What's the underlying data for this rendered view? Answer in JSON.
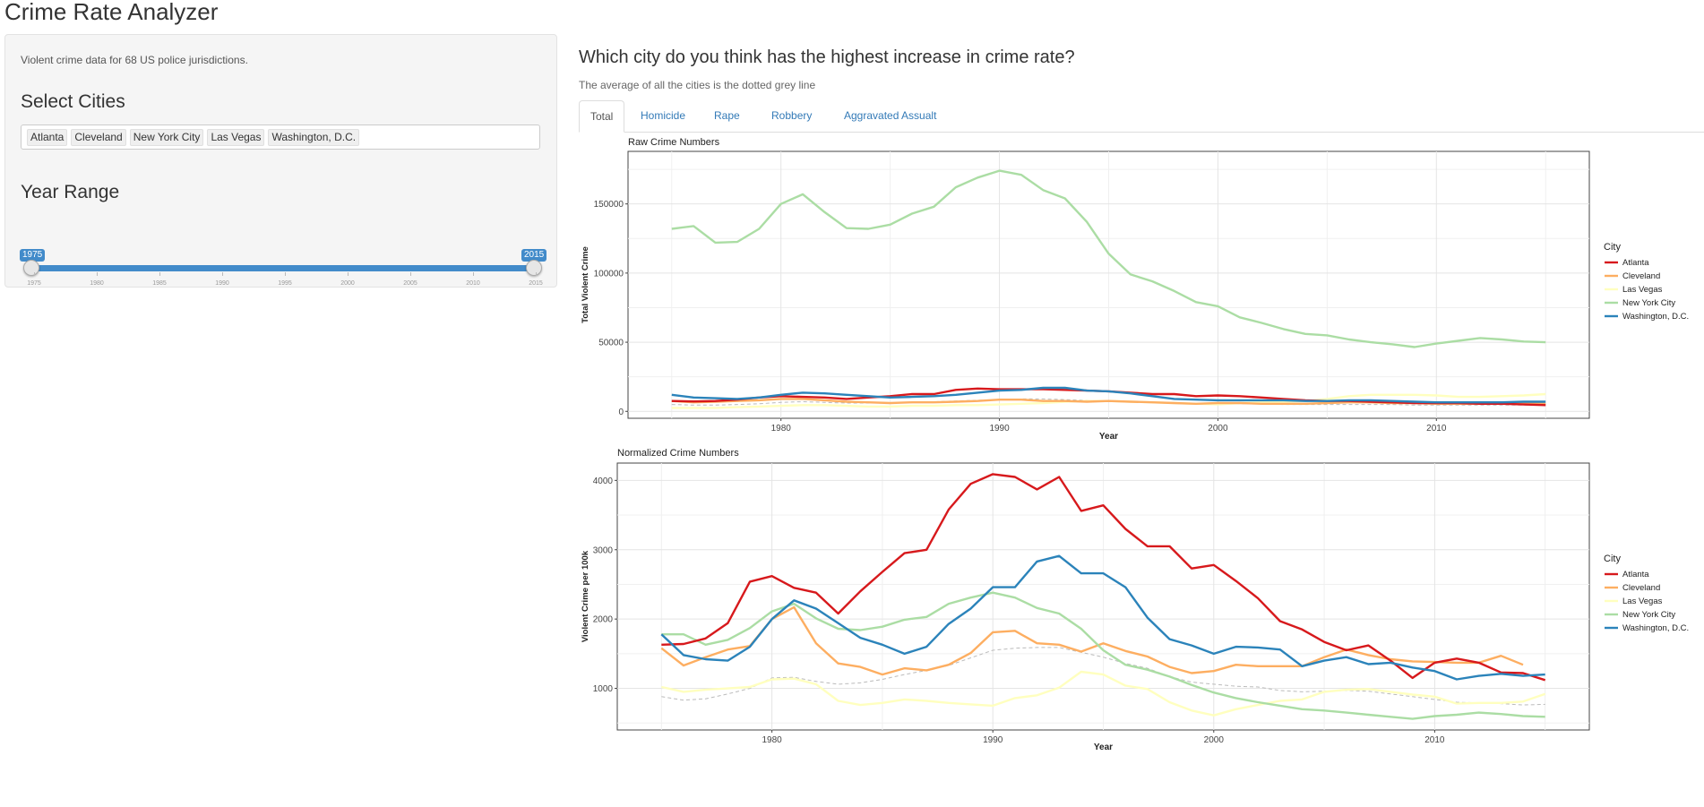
{
  "app": {
    "title": "Crime Rate Analyzer"
  },
  "sidebar": {
    "description": "Violent crime data for 68 US police jurisdictions.",
    "cities_heading": "Select Cities",
    "selected_cities": [
      "Atlanta",
      "Cleveland",
      "New York City",
      "Las Vegas",
      "Washington, D.C."
    ],
    "years_heading": "Year Range",
    "year_range": {
      "min": 1975,
      "max": 2015,
      "from": 1975,
      "to": 2015
    },
    "tick_labels": [
      "1975",
      "1980",
      "1985",
      "1990",
      "1995",
      "2000",
      "2005",
      "2010",
      "2015"
    ]
  },
  "main": {
    "question": "Which city do you think has the highest increase in crime rate?",
    "subtitle": "The average of all the cities is the dotted grey line",
    "tabs": [
      {
        "label": "Total",
        "active": true
      },
      {
        "label": "Homicide",
        "active": false
      },
      {
        "label": "Rape",
        "active": false
      },
      {
        "label": "Robbery",
        "active": false
      },
      {
        "label": "Aggravated Assualt",
        "active": false
      }
    ]
  },
  "colors": {
    "Atlanta": "#d7191c",
    "Cleveland": "#fdae61",
    "Las Vegas": "#ffffbf",
    "New York City": "#abdda4",
    "Washington, D.C.": "#2b83ba",
    "average": "#bbbbbb",
    "slider_accent": "#428bca",
    "link": "#337ab7"
  },
  "chart_data": [
    {
      "type": "line",
      "title": "Raw Crime Numbers",
      "xlabel": "Year",
      "ylabel": "Total Violent Crime",
      "xlim": [
        1973,
        2017
      ],
      "ylim": [
        -5000,
        188000
      ],
      "xticks": [
        1980,
        1990,
        2000,
        2010
      ],
      "yticks": [
        0,
        50000,
        100000,
        150000
      ],
      "ytick_labels": [
        "0",
        "50000",
        "100000",
        "150000"
      ],
      "legend_title": "City",
      "legend_position": "right",
      "x": [
        1975,
        1976,
        1977,
        1978,
        1979,
        1980,
        1981,
        1982,
        1983,
        1984,
        1985,
        1986,
        1987,
        1988,
        1989,
        1990,
        1991,
        1992,
        1993,
        1994,
        1995,
        1996,
        1997,
        1998,
        1999,
        2000,
        2001,
        2002,
        2003,
        2004,
        2005,
        2006,
        2007,
        2008,
        2009,
        2010,
        2011,
        2012,
        2013,
        2014,
        2015
      ],
      "series": [
        {
          "name": "Atlanta",
          "values": [
            7500,
            7200,
            7500,
            8500,
            10000,
            11000,
            10500,
            10000,
            9000,
            10000,
            11000,
            12500,
            12500,
            15500,
            16500,
            16000,
            16000,
            16000,
            15500,
            15000,
            14500,
            13500,
            12500,
            12500,
            11000,
            11500,
            11000,
            10000,
            9000,
            8000,
            7500,
            7500,
            7000,
            6500,
            6000,
            6000,
            6000,
            5500,
            5500,
            5000,
            4500
          ]
        },
        {
          "name": "Cleveland",
          "values": [
            7500,
            6500,
            7000,
            7500,
            8000,
            9000,
            9000,
            8000,
            7000,
            6500,
            6000,
            6500,
            6500,
            7000,
            7500,
            8500,
            8500,
            7500,
            7500,
            7000,
            7500,
            7000,
            6500,
            6000,
            5500,
            6000,
            6000,
            5500,
            5500,
            5500,
            6000,
            6500,
            6500,
            6000,
            6000,
            5500,
            5500,
            5500,
            5500,
            6000,
            5500
          ]
        },
        {
          "name": "Las Vegas",
          "values": [
            2500,
            2500,
            2500,
            3000,
            3500,
            4000,
            4500,
            4500,
            4000,
            3500,
            3500,
            4000,
            4000,
            4500,
            4500,
            5000,
            5500,
            6000,
            7000,
            7500,
            7500,
            7000,
            6500,
            6000,
            5500,
            5000,
            6000,
            6500,
            7000,
            7500,
            9000,
            11000,
            12000,
            12000,
            12000,
            11500,
            10500,
            10500,
            11000,
            11500,
            12500
          ]
        },
        {
          "name": "New York City",
          "values": [
            132000,
            134000,
            122000,
            122500,
            132000,
            150000,
            157000,
            144000,
            132500,
            132000,
            135000,
            143000,
            148000,
            162000,
            169000,
            174000,
            171000,
            160000,
            154000,
            137000,
            114000,
            99000,
            94000,
            87000,
            79000,
            76000,
            68000,
            64000,
            59500,
            56000,
            55000,
            52000,
            50000,
            48500,
            46500,
            49000,
            51000,
            53000,
            52000,
            50500,
            50000
          ]
        },
        {
          "name": "Washington, D.C.",
          "values": [
            12000,
            10000,
            9500,
            9000,
            10000,
            12000,
            13500,
            13000,
            12000,
            11000,
            10000,
            10500,
            11000,
            12000,
            13500,
            15000,
            15500,
            17000,
            17000,
            15000,
            14500,
            13000,
            11000,
            9000,
            8500,
            8000,
            8000,
            8000,
            8000,
            7500,
            7500,
            8000,
            8000,
            7500,
            7000,
            6500,
            6500,
            6500,
            6500,
            7000,
            7000
          ]
        },
        {
          "name": "Average",
          "values": [
            5000,
            4500,
            4500,
            5000,
            5500,
            6500,
            7000,
            6500,
            6000,
            6000,
            6000,
            6500,
            7000,
            7500,
            8000,
            8500,
            9000,
            9000,
            8500,
            8000,
            7500,
            7000,
            6500,
            6000,
            5500,
            5500,
            5500,
            5500,
            5000,
            5000,
            5000,
            5000,
            5000,
            5000,
            4500,
            4500,
            4500,
            4500,
            4500,
            4500,
            4500
          ]
        }
      ]
    },
    {
      "type": "line",
      "title": "Normalized Crime Numbers",
      "xlabel": "Year",
      "ylabel": "Violent Crime per 100k",
      "xlim": [
        1973,
        2017
      ],
      "ylim": [
        400,
        4250
      ],
      "xticks": [
        1980,
        1990,
        2000,
        2010
      ],
      "yticks": [
        1000,
        2000,
        3000,
        4000
      ],
      "ytick_labels": [
        "1000",
        "2000",
        "3000",
        "4000"
      ],
      "legend_title": "City",
      "legend_position": "right",
      "x": [
        1975,
        1976,
        1977,
        1978,
        1979,
        1980,
        1981,
        1982,
        1983,
        1984,
        1985,
        1986,
        1987,
        1988,
        1989,
        1990,
        1991,
        1992,
        1993,
        1994,
        1995,
        1996,
        1997,
        1998,
        1999,
        2000,
        2001,
        2002,
        2003,
        2004,
        2005,
        2006,
        2007,
        2008,
        2009,
        2010,
        2011,
        2012,
        2013,
        2014,
        2015
      ],
      "series": [
        {
          "name": "Atlanta",
          "values": [
            1630,
            1640,
            1720,
            1940,
            2540,
            2620,
            2450,
            2380,
            2080,
            2400,
            2680,
            2950,
            3000,
            3580,
            3950,
            4090,
            4050,
            3870,
            4050,
            3560,
            3640,
            3300,
            3050,
            3050,
            2730,
            2780,
            2550,
            2300,
            1970,
            1850,
            1670,
            1550,
            1620,
            1400,
            1150,
            1370,
            1430,
            1370,
            1230,
            1220,
            1120
          ]
        },
        {
          "name": "Cleveland",
          "values": [
            1580,
            1330,
            1450,
            1560,
            1610,
            2000,
            2170,
            1650,
            1360,
            1310,
            1200,
            1290,
            1260,
            1340,
            1510,
            1810,
            1830,
            1650,
            1630,
            1530,
            1650,
            1540,
            1460,
            1310,
            1220,
            1250,
            1340,
            1320,
            1320,
            1320,
            1450,
            1560,
            1480,
            1420,
            1390,
            1380,
            1370,
            1370,
            1470,
            1340,
            null
          ]
        },
        {
          "name": "Las Vegas",
          "values": [
            1020,
            950,
            980,
            1000,
            1020,
            1130,
            1140,
            1060,
            820,
            760,
            790,
            840,
            820,
            790,
            770,
            750,
            860,
            900,
            1010,
            1240,
            1200,
            1040,
            990,
            800,
            680,
            610,
            700,
            760,
            820,
            840,
            950,
            980,
            990,
            950,
            910,
            880,
            780,
            790,
            790,
            810,
            920
          ]
        },
        {
          "name": "New York City",
          "values": [
            1780,
            1780,
            1630,
            1700,
            1870,
            2110,
            2220,
            2010,
            1860,
            1840,
            1890,
            1990,
            2030,
            2220,
            2310,
            2380,
            2310,
            2160,
            2080,
            1860,
            1550,
            1340,
            1270,
            1170,
            1050,
            940,
            860,
            800,
            750,
            700,
            680,
            650,
            620,
            590,
            560,
            600,
            620,
            650,
            630,
            600,
            590
          ]
        },
        {
          "name": "Washington, D.C.",
          "values": [
            1780,
            1480,
            1420,
            1400,
            1600,
            2000,
            2270,
            2150,
            1940,
            1730,
            1630,
            1500,
            1600,
            1930,
            2150,
            2460,
            2460,
            2830,
            2910,
            2660,
            2660,
            2460,
            2020,
            1710,
            1620,
            1500,
            1600,
            1590,
            1560,
            1320,
            1400,
            1450,
            1350,
            1370,
            1300,
            1250,
            1130,
            1180,
            1210,
            1180,
            1200
          ]
        },
        {
          "name": "Average",
          "values": [
            880,
            830,
            850,
            920,
            1000,
            1150,
            1160,
            1100,
            1060,
            1080,
            1130,
            1200,
            1260,
            1330,
            1440,
            1550,
            1580,
            1590,
            1590,
            1520,
            1450,
            1360,
            1290,
            1170,
            1090,
            1060,
            1030,
            1020,
            970,
            950,
            960,
            970,
            960,
            920,
            880,
            840,
            800,
            790,
            780,
            760,
            770
          ]
        }
      ]
    }
  ]
}
